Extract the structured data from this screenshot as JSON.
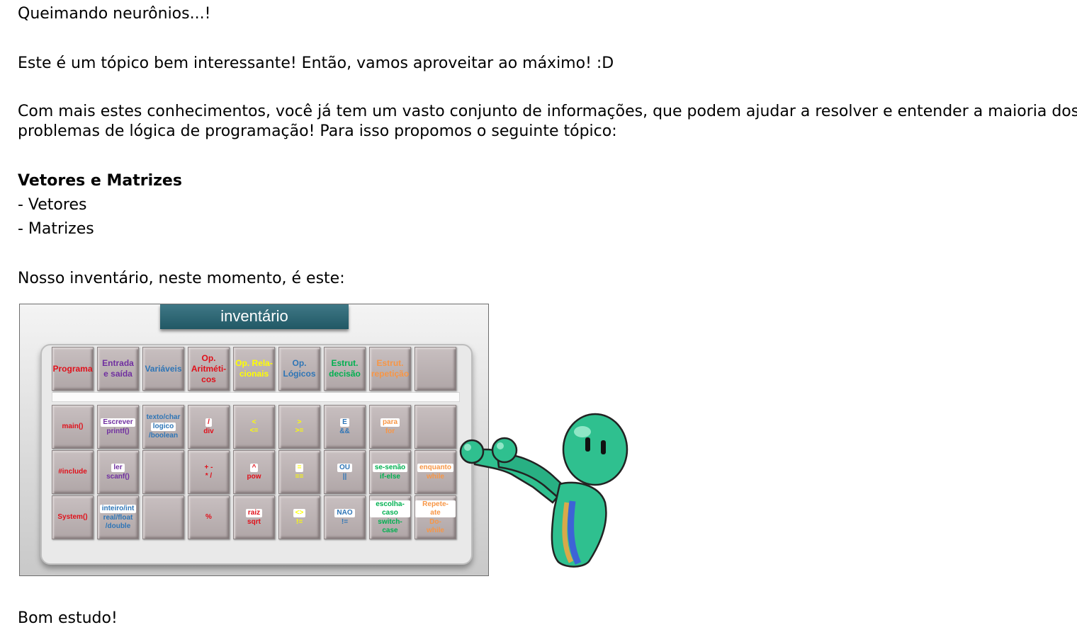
{
  "intro": "Queimando neurônios...!",
  "para1": "Este é um tópico bem interessante!  Então, vamos aproveitar ao máximo! :D",
  "para2_line1": "Com mais estes conhecimentos, você já tem um vasto conjunto de informações, que podem ajudar a resolver e entender a maioria dos",
  "para2_line2": "problemas de lógica de programação! Para isso propomos o seguinte tópico:",
  "topic_title": "Vetores e Matrizes",
  "topic_items": [
    "- Vetores",
    "- Matrizes"
  ],
  "inventory_intro": "Nosso inventário, neste momento, é este:",
  "inventory": {
    "title": "inventário",
    "colors": {
      "red": "#e0101a",
      "purple": "#7030a0",
      "blue": "#2e75b6",
      "yellow": "#ffff00",
      "green": "#00b050",
      "orange": "#f79646"
    },
    "headers": [
      {
        "lines": [
          "Programa"
        ],
        "color": "red"
      },
      {
        "lines": [
          "Entrada",
          "e saída"
        ],
        "color": "purple"
      },
      {
        "lines": [
          "Variáveis"
        ],
        "color": "blue"
      },
      {
        "lines": [
          "Op.",
          "Aritméti-",
          "cos"
        ],
        "color": "red"
      },
      {
        "lines": [
          "Op. Rela-",
          "cionais"
        ],
        "color": "yellow"
      },
      {
        "lines": [
          "Op.",
          "Lógicos"
        ],
        "color": "blue"
      },
      {
        "lines": [
          "Estrut.",
          "decisão"
        ],
        "color": "green"
      },
      {
        "lines": [
          "Estrut.",
          "repetição"
        ],
        "color": "orange"
      },
      {
        "lines": [],
        "color": "red"
      }
    ],
    "rows": [
      [
        {
          "chip": "",
          "text": [
            "main()"
          ],
          "color": "red"
        },
        {
          "chip": "Escrever",
          "text": [
            "printf()"
          ],
          "color": "purple"
        },
        {
          "chip": "",
          "text": [
            "texto/char",
            "logico",
            "/boolean"
          ],
          "color": "blue",
          "chipIndex": 1
        },
        {
          "chip": "/",
          "text": [
            "div"
          ],
          "color": "red"
        },
        {
          "chip": "",
          "text": [
            "<",
            "<="
          ],
          "color": "yellow"
        },
        {
          "chip": "",
          "text": [
            ">",
            ">="
          ],
          "color": "yellow"
        },
        {
          "chip": "E",
          "text": [
            "&&"
          ],
          "color": "blue"
        },
        {
          "chip": "para",
          "text": [
            "for"
          ],
          "color": "orange"
        },
        {
          "chip": "",
          "text": [],
          "color": "red"
        }
      ],
      [
        {
          "chip": "",
          "text": [
            "#include"
          ],
          "color": "red"
        },
        {
          "chip": "ler",
          "text": [
            "scanf()"
          ],
          "color": "purple"
        },
        {
          "chip": "",
          "text": [],
          "color": "blue"
        },
        {
          "chip": "",
          "text": [
            "+  -",
            "*  /"
          ],
          "color": "red"
        },
        {
          "chip": "^",
          "text": [
            "pow"
          ],
          "color": "red"
        },
        {
          "chip": "=",
          "text": [
            "=="
          ],
          "color": "yellow"
        },
        {
          "chip": "OU",
          "text": [
            "||"
          ],
          "color": "blue"
        },
        {
          "chip": "se-senão",
          "text": [
            "if-else"
          ],
          "color": "green"
        },
        {
          "chip": "enquanto",
          "text": [
            "while"
          ],
          "color": "orange"
        }
      ],
      [
        {
          "chip": "",
          "text": [
            "System()"
          ],
          "color": "red"
        },
        {
          "chip": "",
          "text": [
            "inteiro/int",
            "real/float",
            "/double"
          ],
          "color": "blue",
          "chipIndex": 0
        },
        {
          "chip": "",
          "text": [],
          "color": "blue"
        },
        {
          "chip": "",
          "text": [
            "%"
          ],
          "color": "red"
        },
        {
          "chip": "raiz",
          "text": [
            "sqrt"
          ],
          "color": "red"
        },
        {
          "chip": "<>",
          "text": [
            "!="
          ],
          "color": "yellow"
        },
        {
          "chip": "NAO",
          "text": [
            "!="
          ],
          "color": "blue"
        },
        {
          "chip": "escolha-caso",
          "text": [
            "switch-",
            "case"
          ],
          "color": "green"
        },
        {
          "chip": "Repete-ate",
          "text": [
            "Do-",
            "while"
          ],
          "color": "orange"
        }
      ]
    ]
  },
  "closing": "Bom estudo!"
}
